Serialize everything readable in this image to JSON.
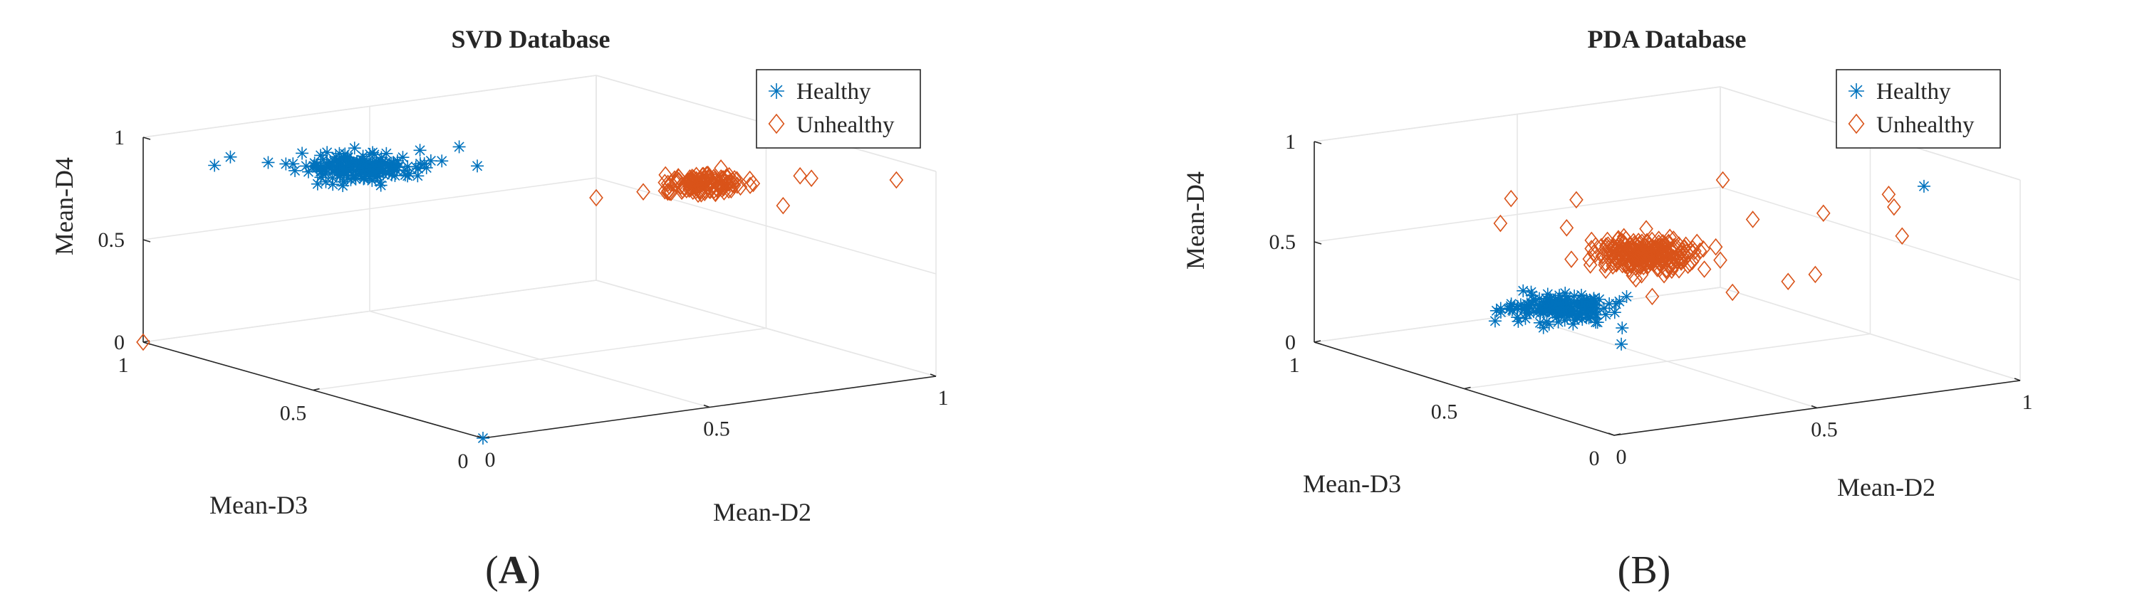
{
  "figure": {
    "panel_labels": [
      "(A)",
      "(B)"
    ]
  },
  "chart_data": [
    {
      "type": "scatter3d",
      "title": "SVD Database",
      "xlabel": "Mean-D2",
      "ylabel": "Mean-D3",
      "zlabel": "Mean-D4",
      "xlim": [
        0,
        1
      ],
      "ylim": [
        0,
        1
      ],
      "zlim": [
        0,
        1
      ],
      "xticks": [
        "0",
        "0.5",
        "1"
      ],
      "yticks": [
        "0",
        "0.5",
        "1"
      ],
      "zticks": [
        "0",
        "0.5",
        "1"
      ],
      "grid": true,
      "legend": {
        "position": "top-right",
        "entries": [
          "Healthy",
          "Unhealthy"
        ]
      },
      "colors": {
        "healthy": "#0072BD",
        "unhealthy": "#D95319"
      },
      "series": [
        {
          "name": "Healthy",
          "marker": "asterisk",
          "cluster": {
            "center": [
              0.27,
              0.72,
              0.9
            ],
            "spread": [
              0.05,
              0.05,
              0.018
            ],
            "count": 180
          },
          "outliers": [
            [
              0.05,
              0.62,
              1.0
            ],
            [
              0.1,
              0.62,
              0.92
            ],
            [
              0.18,
              0.82,
              0.9
            ],
            [
              0.12,
              0.95,
              0.85
            ],
            [
              0.2,
              0.6,
              0.95
            ],
            [
              0.38,
              0.66,
              0.93
            ],
            [
              0.42,
              0.63,
              1.0
            ],
            [
              0.4,
              0.55,
              0.95
            ],
            [
              0.08,
              0.85,
              0.95
            ],
            [
              0.0,
              0.0,
              0.0
            ]
          ]
        },
        {
          "name": "Unhealthy",
          "marker": "diamond",
          "cluster": {
            "center": [
              0.7,
              0.28,
              0.9
            ],
            "spread": [
              0.035,
              0.035,
              0.015
            ],
            "count": 130
          },
          "outliers": [
            [
              0.7,
              0.05,
              0.9
            ],
            [
              0.85,
              0.2,
              0.93
            ],
            [
              0.8,
              0.1,
              0.98
            ],
            [
              0.55,
              0.4,
              0.82
            ],
            [
              0.95,
              0.05,
              0.95
            ],
            [
              0.0,
              1.0,
              0.0
            ]
          ]
        }
      ]
    },
    {
      "type": "scatter3d",
      "title": "PDA Database",
      "xlabel": "Mean-D2",
      "ylabel": "Mean-D3",
      "zlabel": "Mean-D4",
      "xlim": [
        0,
        1
      ],
      "ylim": [
        0,
        1
      ],
      "zlim": [
        0,
        1
      ],
      "xticks": [
        "0",
        "0.5",
        "1"
      ],
      "yticks": [
        "0",
        "0.5",
        "1"
      ],
      "zticks": [
        "0",
        "0.5",
        "1"
      ],
      "grid": true,
      "legend": {
        "position": "top-right",
        "entries": [
          "Healthy",
          "Unhealthy"
        ]
      },
      "colors": {
        "healthy": "#0072BD",
        "unhealthy": "#D95319"
      },
      "series": [
        {
          "name": "Healthy",
          "marker": "asterisk",
          "cluster": {
            "center": [
              0.28,
              0.55,
              0.3
            ],
            "spread": [
              0.05,
              0.05,
              0.02
            ],
            "count": 170
          },
          "outliers": [
            [
              0.15,
              0.6,
              0.25
            ],
            [
              0.4,
              0.5,
              0.35
            ],
            [
              0.33,
              0.42,
              0.25
            ],
            [
              0.35,
              0.45,
              0.15
            ],
            [
              0.8,
              0.05,
              1.0
            ]
          ]
        },
        {
          "name": "Unhealthy",
          "marker": "diamond",
          "cluster": {
            "center": [
              0.45,
              0.5,
              0.55
            ],
            "spread": [
              0.05,
              0.05,
              0.03
            ],
            "count": 260
          },
          "outliers": [
            [
              0.2,
              0.65,
              0.7
            ],
            [
              0.3,
              0.75,
              0.75
            ],
            [
              0.35,
              0.6,
              0.8
            ],
            [
              0.6,
              0.35,
              0.75
            ],
            [
              0.7,
              0.25,
              0.8
            ],
            [
              0.8,
              0.15,
              0.85
            ],
            [
              0.75,
              0.1,
              0.95
            ],
            [
              0.5,
              0.55,
              0.3
            ],
            [
              0.55,
              0.35,
              0.4
            ],
            [
              0.65,
              0.3,
              0.45
            ],
            [
              0.6,
              0.45,
              0.9
            ],
            [
              0.4,
              0.7,
              0.6
            ],
            [
              0.68,
              0.25,
              0.5
            ],
            [
              0.82,
              0.15,
              0.7
            ]
          ]
        }
      ]
    }
  ]
}
